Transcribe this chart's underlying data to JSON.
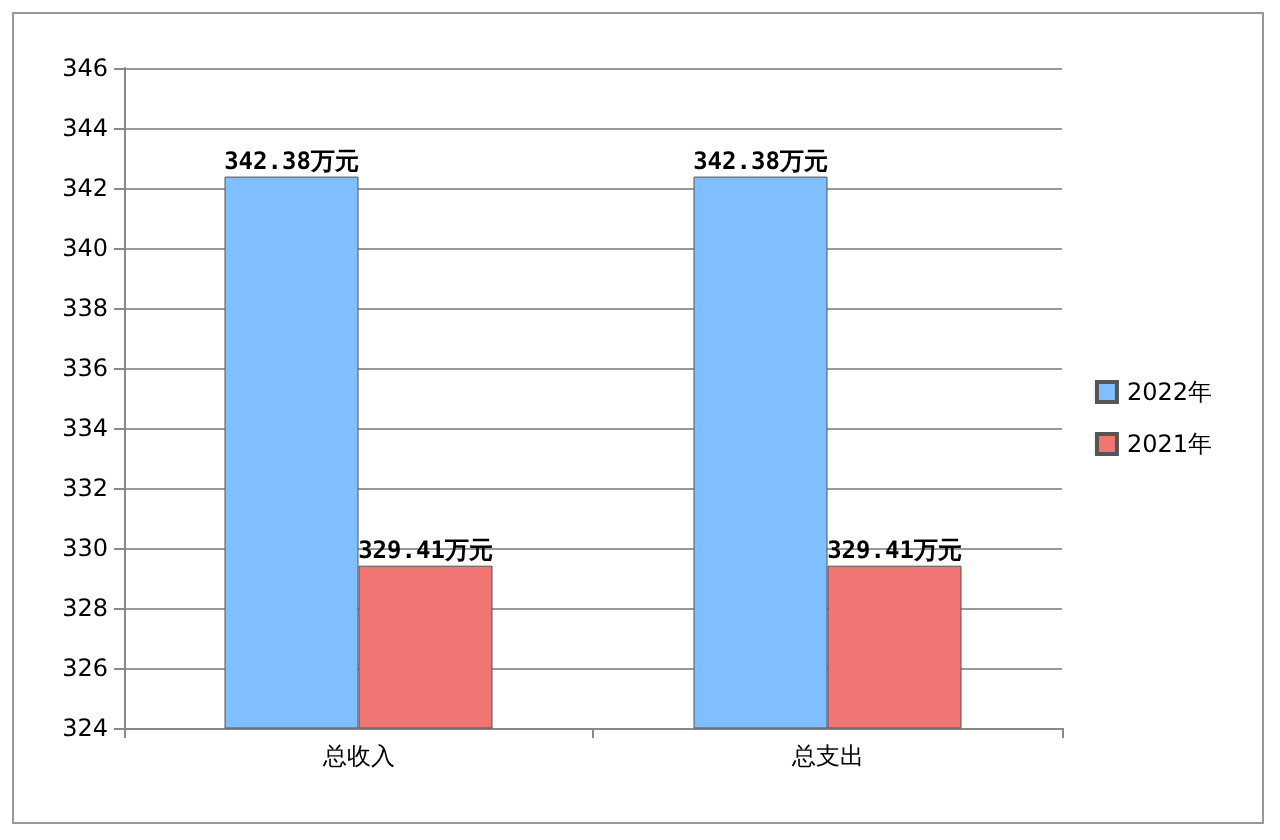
{
  "chart_data": {
    "type": "bar",
    "categories": [
      "总收入",
      "总支出"
    ],
    "series": [
      {
        "name": "2022年",
        "color": "#80bfff",
        "values": [
          342.38,
          342.38
        ],
        "value_labels": [
          "342.38万元",
          "342.38万元"
        ]
      },
      {
        "name": "2021年",
        "color": "#f07573",
        "values": [
          329.41,
          329.41
        ],
        "value_labels": [
          "329.41万元",
          "329.41万元"
        ]
      }
    ],
    "ylim": [
      324,
      346
    ],
    "yticks": [
      324,
      326,
      328,
      330,
      332,
      334,
      336,
      338,
      340,
      342,
      344,
      346
    ],
    "grid": "y",
    "legend": "right"
  }
}
